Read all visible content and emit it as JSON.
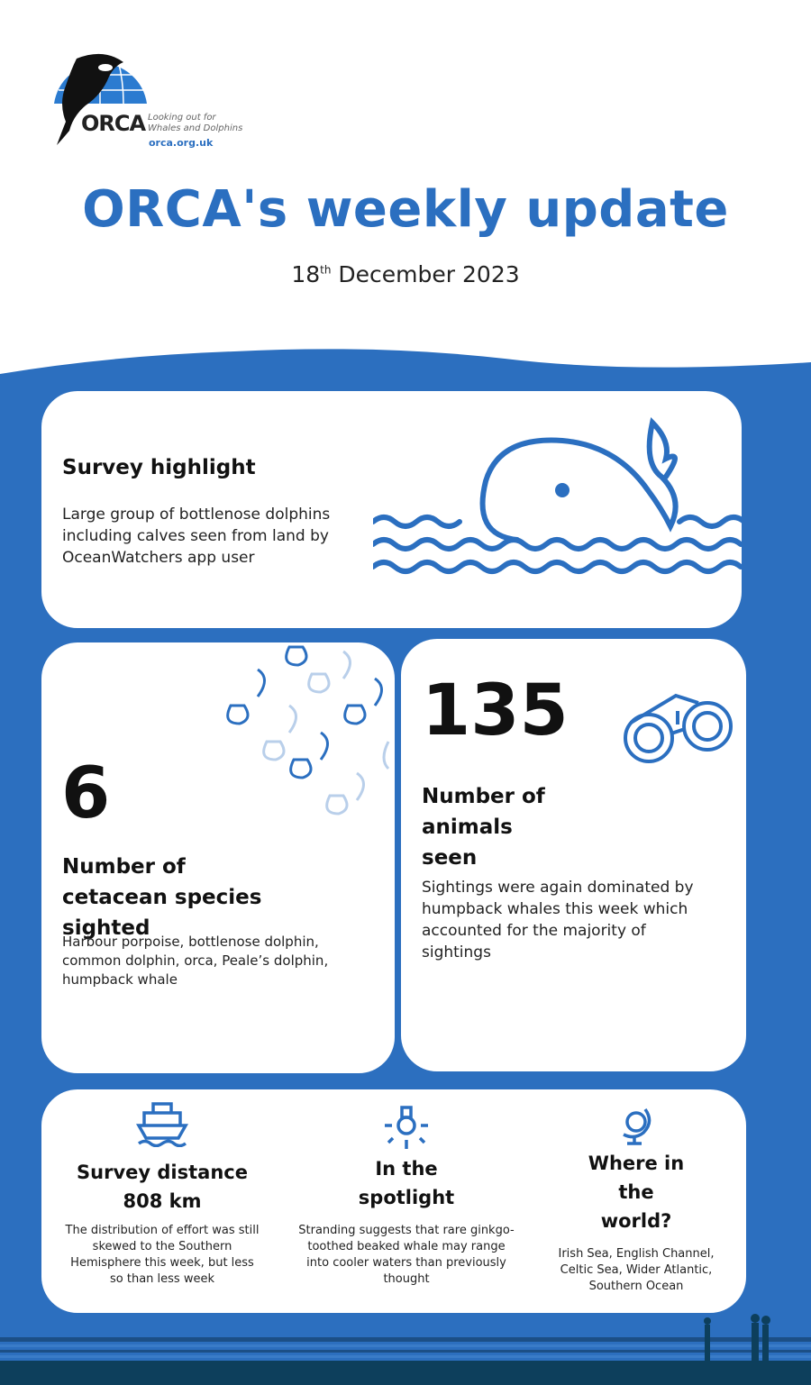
{
  "logo": {
    "brand": "ORCA",
    "tagline": "Looking out for Whales and Dolphins",
    "url": "orca.org.uk"
  },
  "header": {
    "title": "ORCA's weekly update",
    "date_day": "18",
    "date_suffix": "th",
    "date_rest": "December 2023"
  },
  "colors": {
    "accent": "#2b6fc0",
    "sea": "#2c6fbf",
    "dark": "#0d3f5c",
    "card": "#ffffff"
  },
  "highlight": {
    "title": "Survey highlight",
    "text": "Large group of bottlenose dolphins including calves seen from land by OceanWatchers app user",
    "icon": "whale-icon"
  },
  "species": {
    "value": "6",
    "title": "Number of cetacean species sighted",
    "text": "Harbour porpoise, bottlenose dolphin, common dolphin, orca, Peale’s dolphin, humpback whale",
    "icon": "dolphins-icon"
  },
  "animals": {
    "value": "135",
    "title": "Number of animals seen",
    "text": "Sightings were again dominated by humpback whales this week which accounted for the majority of sightings",
    "icon": "binoculars-icon"
  },
  "bottom": [
    {
      "title": "Survey distance",
      "value": "808 km",
      "text": "The distribution of effort was still skewed to the Southern Hemisphere this week, but less so than less week",
      "icon": "ship-icon"
    },
    {
      "title": "In the spotlight",
      "text": "Stranding suggests that rare ginkgo-toothed beaked whale may range into cooler waters than previously thought",
      "icon": "lightbulb-icon"
    },
    {
      "title": "Where in the world?",
      "text": "Irish Sea, English Channel, Celtic Sea,  Wider Atlantic, Southern Ocean",
      "icon": "globe-icon"
    }
  ]
}
